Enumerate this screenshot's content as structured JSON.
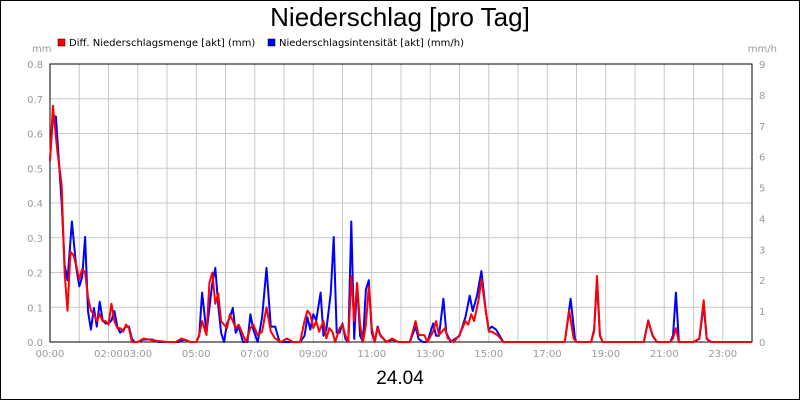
{
  "chart_data": {
    "type": "line",
    "title": "Niederschlag [pro Tag]",
    "xlabel": "24.04",
    "ylabel_left": "mm",
    "ylabel_right": "mm/h",
    "ylim_left": [
      0,
      0.8
    ],
    "ylim_right": [
      0,
      9
    ],
    "yticks_left": [
      "0.0",
      "0.1",
      "0.2",
      "0.3",
      "0.4",
      "0.5",
      "0.6",
      "0.7",
      "0.8"
    ],
    "yticks_right": [
      "0",
      "1",
      "2",
      "3",
      "4",
      "5",
      "6",
      "7",
      "8",
      "9"
    ],
    "xlim": [
      0,
      24
    ],
    "xticks": [
      "00:00",
      "02:00",
      "03:00",
      "05:00",
      "07:00",
      "09:00",
      "11:00",
      "13:00",
      "15:00",
      "17:00",
      "19:00",
      "21:00",
      "23:00"
    ],
    "grid": true,
    "legend_position": "top-left",
    "series": [
      {
        "name": "Diff. Niederschlagsmenge [akt] (mm)",
        "color": "#ff0000",
        "axis": "left",
        "points": [
          [
            0,
            0.52
          ],
          [
            0.1,
            0.68
          ],
          [
            0.25,
            0.55
          ],
          [
            0.4,
            0.45
          ],
          [
            0.5,
            0.2
          ],
          [
            0.6,
            0.09
          ],
          [
            0.7,
            0.26
          ],
          [
            0.8,
            0.25
          ],
          [
            0.9,
            0.22
          ],
          [
            1.0,
            0.18
          ],
          [
            1.1,
            0.21
          ],
          [
            1.2,
            0.2
          ],
          [
            1.3,
            0.13
          ],
          [
            1.4,
            0.09
          ],
          [
            1.5,
            0.08
          ],
          [
            1.6,
            0.06
          ],
          [
            1.7,
            0.08
          ],
          [
            1.8,
            0.06
          ],
          [
            1.9,
            0.06
          ],
          [
            2.0,
            0.05
          ],
          [
            2.1,
            0.11
          ],
          [
            2.2,
            0.06
          ],
          [
            2.3,
            0.04
          ],
          [
            2.4,
            0.04
          ],
          [
            2.5,
            0.03
          ],
          [
            2.6,
            0.05
          ],
          [
            2.7,
            0.04
          ],
          [
            2.8,
            0.0
          ],
          [
            3.0,
            0.0
          ],
          [
            3.2,
            0.01
          ],
          [
            3.5,
            0.005
          ],
          [
            4.0,
            0.0
          ],
          [
            4.3,
            0.0
          ],
          [
            4.5,
            0.01
          ],
          [
            4.8,
            0.0
          ],
          [
            5.0,
            0.0
          ],
          [
            5.1,
            0.02
          ],
          [
            5.2,
            0.06
          ],
          [
            5.35,
            0.02
          ],
          [
            5.45,
            0.17
          ],
          [
            5.55,
            0.2
          ],
          [
            5.65,
            0.11
          ],
          [
            5.75,
            0.14
          ],
          [
            5.85,
            0.06
          ],
          [
            5.95,
            0.05
          ],
          [
            6.05,
            0.04
          ],
          [
            6.15,
            0.08
          ],
          [
            6.25,
            0.06
          ],
          [
            6.35,
            0.04
          ],
          [
            6.45,
            0.05
          ],
          [
            6.55,
            0.03
          ],
          [
            6.7,
            0.0
          ],
          [
            6.85,
            0.04
          ],
          [
            6.95,
            0.05
          ],
          [
            7.1,
            0.02
          ],
          [
            7.25,
            0.03
          ],
          [
            7.4,
            0.1
          ],
          [
            7.55,
            0.03
          ],
          [
            7.7,
            0.01
          ],
          [
            7.9,
            0.0
          ],
          [
            8.1,
            0.01
          ],
          [
            8.3,
            0.0
          ],
          [
            8.55,
            0.0
          ],
          [
            8.7,
            0.06
          ],
          [
            8.8,
            0.09
          ],
          [
            8.9,
            0.08
          ],
          [
            9.0,
            0.04
          ],
          [
            9.1,
            0.06
          ],
          [
            9.2,
            0.03
          ],
          [
            9.35,
            0.06
          ],
          [
            9.45,
            0.01
          ],
          [
            9.55,
            0.04
          ],
          [
            9.65,
            0.03
          ],
          [
            9.75,
            0.0
          ],
          [
            9.9,
            0.04
          ],
          [
            10.0,
            0.05
          ],
          [
            10.1,
            0.02
          ],
          [
            10.2,
            0.0
          ],
          [
            10.3,
            0.19
          ],
          [
            10.4,
            0.06
          ],
          [
            10.5,
            0.17
          ],
          [
            10.6,
            0.05
          ],
          [
            10.7,
            0.0
          ],
          [
            10.8,
            0.05
          ],
          [
            10.9,
            0.16
          ],
          [
            11.0,
            0.04
          ],
          [
            11.1,
            0.0
          ],
          [
            11.2,
            0.04
          ],
          [
            11.3,
            0.02
          ],
          [
            11.5,
            0.0
          ],
          [
            11.7,
            0.01
          ],
          [
            11.9,
            0.0
          ],
          [
            12.3,
            0.0
          ],
          [
            12.5,
            0.06
          ],
          [
            12.6,
            0.02
          ],
          [
            12.8,
            0.02
          ],
          [
            12.9,
            0.0
          ],
          [
            13.1,
            0.03
          ],
          [
            13.2,
            0.06
          ],
          [
            13.3,
            0.02
          ],
          [
            13.5,
            0.04
          ],
          [
            13.6,
            0.01
          ],
          [
            13.8,
            0.0
          ],
          [
            14.0,
            0.02
          ],
          [
            14.2,
            0.06
          ],
          [
            14.3,
            0.05
          ],
          [
            14.4,
            0.08
          ],
          [
            14.5,
            0.06
          ],
          [
            14.65,
            0.12
          ],
          [
            14.75,
            0.18
          ],
          [
            14.9,
            0.09
          ],
          [
            15.0,
            0.03
          ],
          [
            15.1,
            0.03
          ],
          [
            15.3,
            0.02
          ],
          [
            15.5,
            0.0
          ],
          [
            16.0,
            0.0
          ],
          [
            17.6,
            0.0
          ],
          [
            17.75,
            0.09
          ],
          [
            17.9,
            0.01
          ],
          [
            18.0,
            0.0
          ],
          [
            18.5,
            0.0
          ],
          [
            18.6,
            0.03
          ],
          [
            18.7,
            0.19
          ],
          [
            18.8,
            0.02
          ],
          [
            18.9,
            0.0
          ],
          [
            19.5,
            0.0
          ],
          [
            20.3,
            0.0
          ],
          [
            20.45,
            0.06
          ],
          [
            20.6,
            0.02
          ],
          [
            20.75,
            0.0
          ],
          [
            21.0,
            0.0
          ],
          [
            21.2,
            0.0
          ],
          [
            21.3,
            0.01
          ],
          [
            21.4,
            0.04
          ],
          [
            21.5,
            0.0
          ],
          [
            22.0,
            0.0
          ],
          [
            22.2,
            0.01
          ],
          [
            22.35,
            0.12
          ],
          [
            22.45,
            0.01
          ],
          [
            22.6,
            0.0
          ],
          [
            23.0,
            0.0
          ],
          [
            24,
            0.0
          ]
        ]
      },
      {
        "name": "Niederschlagsintensität [akt] (mm/h)",
        "color": "#0000ff",
        "axis": "right",
        "points": [
          [
            0,
            5.9
          ],
          [
            0.1,
            7.3
          ],
          [
            0.2,
            7.3
          ],
          [
            0.4,
            4.5
          ],
          [
            0.5,
            2.5
          ],
          [
            0.6,
            2.0
          ],
          [
            0.75,
            3.9
          ],
          [
            0.9,
            2.4
          ],
          [
            1.0,
            1.8
          ],
          [
            1.1,
            2.1
          ],
          [
            1.2,
            3.4
          ],
          [
            1.3,
            1.0
          ],
          [
            1.4,
            0.4
          ],
          [
            1.5,
            1.1
          ],
          [
            1.6,
            0.5
          ],
          [
            1.7,
            1.3
          ],
          [
            1.8,
            0.7
          ],
          [
            1.9,
            0.6
          ],
          [
            2.0,
            0.6
          ],
          [
            2.1,
            0.7
          ],
          [
            2.2,
            1.0
          ],
          [
            2.3,
            0.5
          ],
          [
            2.4,
            0.3
          ],
          [
            2.5,
            0.4
          ],
          [
            2.6,
            0.5
          ],
          [
            2.7,
            0.5
          ],
          [
            2.8,
            0.1
          ],
          [
            2.9,
            0.0
          ],
          [
            3.0,
            0.0
          ],
          [
            3.2,
            0.08
          ],
          [
            3.5,
            0.08
          ],
          [
            3.7,
            0.0
          ],
          [
            4.0,
            0.0
          ],
          [
            4.4,
            0.0
          ],
          [
            4.6,
            0.08
          ],
          [
            4.8,
            0.0
          ],
          [
            5.0,
            0.0
          ],
          [
            5.1,
            0.2
          ],
          [
            5.2,
            1.6
          ],
          [
            5.35,
            0.3
          ],
          [
            5.45,
            1.1
          ],
          [
            5.55,
            1.9
          ],
          [
            5.65,
            2.4
          ],
          [
            5.75,
            1.2
          ],
          [
            5.85,
            0.3
          ],
          [
            5.95,
            0.0
          ],
          [
            6.05,
            0.6
          ],
          [
            6.15,
            0.8
          ],
          [
            6.25,
            1.1
          ],
          [
            6.35,
            0.3
          ],
          [
            6.45,
            0.5
          ],
          [
            6.6,
            0.0
          ],
          [
            6.75,
            0.0
          ],
          [
            6.85,
            0.9
          ],
          [
            6.95,
            0.4
          ],
          [
            7.1,
            0.0
          ],
          [
            7.25,
            0.8
          ],
          [
            7.4,
            2.4
          ],
          [
            7.55,
            0.5
          ],
          [
            7.7,
            0.5
          ],
          [
            7.85,
            0.0
          ],
          [
            8.1,
            0.0
          ],
          [
            8.3,
            0.0
          ],
          [
            8.55,
            0.0
          ],
          [
            8.7,
            0.2
          ],
          [
            8.8,
            0.8
          ],
          [
            8.9,
            0.4
          ],
          [
            9.0,
            0.9
          ],
          [
            9.1,
            0.7
          ],
          [
            9.25,
            1.6
          ],
          [
            9.35,
            0.2
          ],
          [
            9.45,
            0.4
          ],
          [
            9.6,
            1.6
          ],
          [
            9.7,
            3.4
          ],
          [
            9.8,
            0.3
          ],
          [
            9.9,
            0.3
          ],
          [
            10.0,
            0.6
          ],
          [
            10.1,
            0.1
          ],
          [
            10.2,
            0.0
          ],
          [
            10.3,
            3.9
          ],
          [
            10.4,
            0.1
          ],
          [
            10.5,
            1.9
          ],
          [
            10.6,
            0.2
          ],
          [
            10.7,
            0.0
          ],
          [
            10.8,
            1.7
          ],
          [
            10.9,
            2.0
          ],
          [
            11.0,
            0.3
          ],
          [
            11.1,
            0.0
          ],
          [
            11.2,
            0.5
          ],
          [
            11.3,
            0.2
          ],
          [
            11.5,
            0.0
          ],
          [
            11.7,
            0.08
          ],
          [
            11.9,
            0.0
          ],
          [
            12.3,
            0.0
          ],
          [
            12.5,
            0.5
          ],
          [
            12.6,
            0.1
          ],
          [
            12.75,
            0.0
          ],
          [
            12.9,
            0.0
          ],
          [
            13.1,
            0.6
          ],
          [
            13.2,
            0.2
          ],
          [
            13.3,
            0.2
          ],
          [
            13.45,
            1.4
          ],
          [
            13.55,
            0.3
          ],
          [
            13.7,
            0.0
          ],
          [
            14.0,
            0.2
          ],
          [
            14.2,
            0.8
          ],
          [
            14.35,
            1.5
          ],
          [
            14.45,
            1.0
          ],
          [
            14.6,
            1.5
          ],
          [
            14.75,
            2.3
          ],
          [
            14.9,
            1.0
          ],
          [
            15.0,
            0.4
          ],
          [
            15.1,
            0.5
          ],
          [
            15.25,
            0.4
          ],
          [
            15.5,
            0.0
          ],
          [
            16.0,
            0.0
          ],
          [
            17.6,
            0.0
          ],
          [
            17.8,
            1.4
          ],
          [
            17.95,
            0.1
          ],
          [
            18.0,
            0.0
          ],
          [
            18.5,
            0.0
          ],
          [
            18.6,
            0.4
          ],
          [
            18.7,
            2.0
          ],
          [
            18.8,
            0.2
          ],
          [
            18.9,
            0.0
          ],
          [
            19.5,
            0.0
          ],
          [
            20.3,
            0.0
          ],
          [
            20.45,
            0.7
          ],
          [
            20.6,
            0.2
          ],
          [
            20.75,
            0.0
          ],
          [
            21.2,
            0.0
          ],
          [
            21.3,
            0.2
          ],
          [
            21.4,
            1.6
          ],
          [
            21.5,
            0.0
          ],
          [
            22.0,
            0.0
          ],
          [
            22.2,
            0.1
          ],
          [
            22.35,
            1.2
          ],
          [
            22.45,
            0.1
          ],
          [
            22.6,
            0.0
          ],
          [
            23.0,
            0.0
          ],
          [
            24,
            0.0
          ]
        ]
      }
    ]
  }
}
